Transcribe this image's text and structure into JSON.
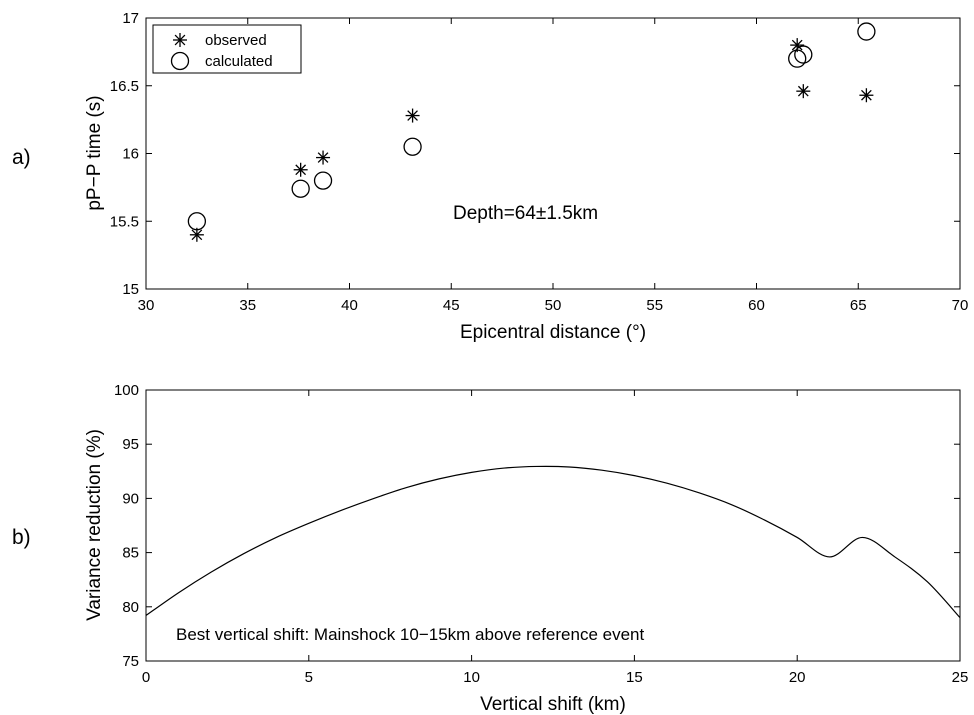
{
  "chart_data": [
    {
      "type": "scatter",
      "panel_label": "a)",
      "xlabel": "Epicentral distance (°)",
      "ylabel": "pP−P time (s)",
      "xlim": [
        30,
        70
      ],
      "ylim": [
        15,
        17
      ],
      "xticks": [
        30,
        35,
        40,
        45,
        50,
        55,
        60,
        65,
        70
      ],
      "yticks": [
        15,
        15.5,
        16,
        16.5,
        17
      ],
      "xtick_labels": [
        "30",
        "35",
        "40",
        "45",
        "50",
        "55",
        "60",
        "65",
        "70"
      ],
      "ytick_labels": [
        "15",
        "15.5",
        "16",
        "16.5",
        "17"
      ],
      "legend_position": "top-left",
      "annotation": "Depth=64±1.5km",
      "series": [
        {
          "name": "observed",
          "marker": "asterisk",
          "points": [
            [
              32.5,
              15.4
            ],
            [
              37.6,
              15.88
            ],
            [
              38.7,
              15.97
            ],
            [
              43.1,
              16.28
            ],
            [
              62.0,
              16.8
            ],
            [
              62.3,
              16.46
            ],
            [
              65.4,
              16.43
            ]
          ]
        },
        {
          "name": "calculated",
          "marker": "circle",
          "points": [
            [
              32.5,
              15.5
            ],
            [
              37.6,
              15.74
            ],
            [
              38.7,
              15.8
            ],
            [
              43.1,
              16.05
            ],
            [
              62.0,
              16.7
            ],
            [
              62.3,
              16.73
            ],
            [
              65.4,
              16.9
            ]
          ]
        }
      ]
    },
    {
      "type": "line",
      "panel_label": "b)",
      "xlabel": "Vertical shift (km)",
      "ylabel": "Variance reduction (%)",
      "xlim": [
        0,
        25
      ],
      "ylim": [
        75,
        100
      ],
      "xticks": [
        0,
        5,
        10,
        15,
        20,
        25
      ],
      "yticks": [
        75,
        80,
        85,
        90,
        95,
        100
      ],
      "xtick_labels": [
        "0",
        "5",
        "10",
        "15",
        "20",
        "25"
      ],
      "ytick_labels": [
        "75",
        "80",
        "85",
        "90",
        "95",
        "100"
      ],
      "annotation": "Best vertical shift: Mainshock 10−15km above reference event",
      "x": [
        0,
        1,
        2,
        3,
        4,
        5,
        6,
        7,
        8,
        9,
        10,
        11,
        12,
        13,
        14,
        15,
        16,
        17,
        18,
        19,
        20,
        21,
        22,
        23,
        24,
        25
      ],
      "y": [
        79.2,
        81.3,
        83.2,
        84.9,
        86.4,
        87.7,
        88.9,
        90.0,
        91.0,
        91.8,
        92.4,
        92.8,
        92.95,
        92.9,
        92.6,
        92.1,
        91.4,
        90.5,
        89.4,
        88.0,
        86.4,
        84.6,
        86.4,
        84.6,
        82.3,
        79.0
      ]
    }
  ]
}
